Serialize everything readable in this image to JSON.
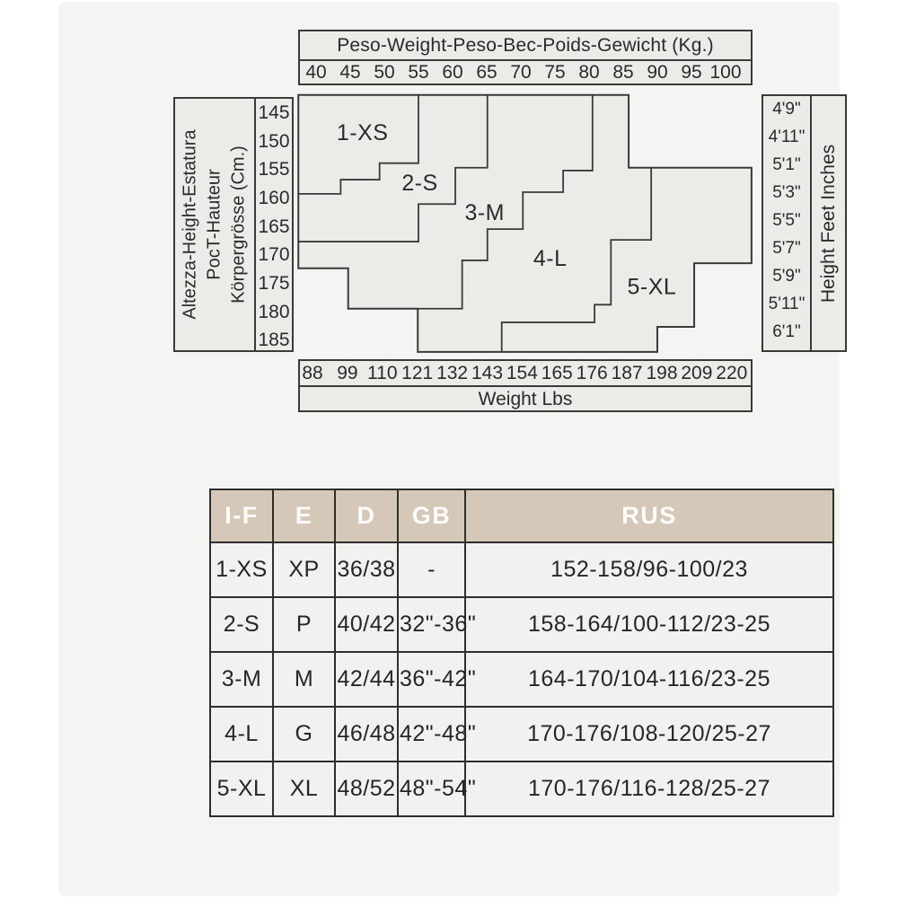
{
  "colors": {
    "card_bg": "#f5f4f3",
    "chart_fill": "#ecebe8",
    "line": "#3a3a3a",
    "table_header_bg": "#d6c8b9",
    "table_header_text": "#fdfcfa"
  },
  "chart_data": {
    "type": "area",
    "subtype": "stepped-size-region-map",
    "title": "Size by body weight and height",
    "x_axis": {
      "title": "Peso-Weight-Peso-Bec-Poids-Gewicht (Kg.)",
      "unit": "kg",
      "ticks": [
        40,
        45,
        50,
        55,
        60,
        65,
        70,
        75,
        80,
        85,
        90,
        95,
        100
      ],
      "range": [
        37.4,
        103.8
      ]
    },
    "x_axis_secondary": {
      "title": "Weight Lbs",
      "unit": "lbs",
      "ticks": [
        88,
        99,
        110,
        121,
        132,
        143,
        154,
        165,
        176,
        187,
        198,
        209,
        220
      ]
    },
    "y_axis": {
      "title_lines": [
        "Altezza-Height-Estatura",
        "PocT-Hauteur",
        "Körpergrösse (Cm.)"
      ],
      "unit": "cm",
      "ticks": [
        145,
        150,
        155,
        160,
        165,
        170,
        175,
        180,
        185
      ],
      "range": [
        141.8,
        187
      ]
    },
    "y_axis_secondary": {
      "title": "Height Feet Inches",
      "ticks": [
        "4'9\"",
        "4'11\"",
        "5'1\"",
        "5'3\"",
        "5'5\"",
        "5'7\"",
        "5'9\"",
        "5'11\"",
        "6'1\""
      ]
    },
    "regions": [
      {
        "label": "1-XS",
        "anchor": {
          "kg": 46.8,
          "cm": 148.5
        }
      },
      {
        "label": "2-S",
        "anchor": {
          "kg": 55.2,
          "cm": 157.3
        }
      },
      {
        "label": "3-M",
        "anchor": {
          "kg": 64.7,
          "cm": 162.5
        }
      },
      {
        "label": "4-L",
        "anchor": {
          "kg": 74.3,
          "cm": 170.6
        }
      },
      {
        "label": "5-XL",
        "anchor": {
          "kg": 89.2,
          "cm": 175.6
        }
      }
    ],
    "outline_kg_cm": [
      [
        37.4,
        141.8
      ],
      [
        85.8,
        141.8
      ],
      [
        85.8,
        154.6
      ],
      [
        103.8,
        154.6
      ],
      [
        103.8,
        171.4
      ],
      [
        95.4,
        171.4
      ],
      [
        95.4,
        182.6
      ],
      [
        90,
        182.6
      ],
      [
        90,
        187
      ],
      [
        54.9,
        187
      ],
      [
        54.9,
        179.4
      ],
      [
        44.7,
        179.4
      ],
      [
        44.7,
        172.3
      ],
      [
        37.4,
        172.3
      ]
    ],
    "boundaries": [
      {
        "between": [
          "1-XS",
          "2-S"
        ],
        "points": [
          [
            55,
            141.8
          ],
          [
            55,
            153.8
          ],
          [
            49.3,
            153.8
          ],
          [
            49.3,
            156.7
          ],
          [
            43.6,
            156.7
          ],
          [
            43.6,
            159.2
          ],
          [
            37.4,
            159.2
          ]
        ]
      },
      {
        "between": [
          "2-S",
          "3-M"
        ],
        "points": [
          [
            65.1,
            141.8
          ],
          [
            65.1,
            154.6
          ],
          [
            60.4,
            154.6
          ],
          [
            60.4,
            161
          ],
          [
            55,
            161
          ],
          [
            55,
            167.6
          ],
          [
            37.4,
            167.6
          ]
        ]
      },
      {
        "between": [
          "3-M",
          "4-L"
        ],
        "points": [
          [
            80.5,
            141.8
          ],
          [
            80.5,
            155.1
          ],
          [
            76.2,
            155.1
          ],
          [
            76.2,
            158.9
          ],
          [
            70.3,
            158.9
          ],
          [
            70.3,
            165.4
          ],
          [
            65.1,
            165.4
          ],
          [
            65.1,
            170.9
          ],
          [
            61.4,
            170.9
          ],
          [
            61.4,
            179.4
          ],
          [
            54.9,
            179.4
          ]
        ]
      },
      {
        "between": [
          "4-L",
          "5-XL"
        ],
        "points": [
          [
            89.1,
            154.6
          ],
          [
            89.1,
            167.3
          ],
          [
            83.2,
            167.3
          ],
          [
            83.2,
            178.7
          ],
          [
            80.8,
            178.7
          ],
          [
            80.8,
            181.8
          ],
          [
            67.2,
            181.8
          ],
          [
            67.2,
            187
          ]
        ]
      }
    ]
  },
  "table": {
    "headers": [
      "I-F",
      "E",
      "D",
      "GB",
      "RUS"
    ],
    "rows": [
      [
        "1-XS",
        "XP",
        "36/38",
        "-",
        "152-158/96-100/23"
      ],
      [
        "2-S",
        "P",
        "40/42",
        "32\"-36\"",
        "158-164/100-112/23-25"
      ],
      [
        "3-M",
        "M",
        "42/44",
        "36\"-42\"",
        "164-170/104-116/23-25"
      ],
      [
        "4-L",
        "G",
        "46/48",
        "42\"-48\"",
        "170-176/108-120/25-27"
      ],
      [
        "5-XL",
        "XL",
        "48/52",
        "48\"-54\"",
        "170-176/116-128/25-27"
      ]
    ]
  }
}
